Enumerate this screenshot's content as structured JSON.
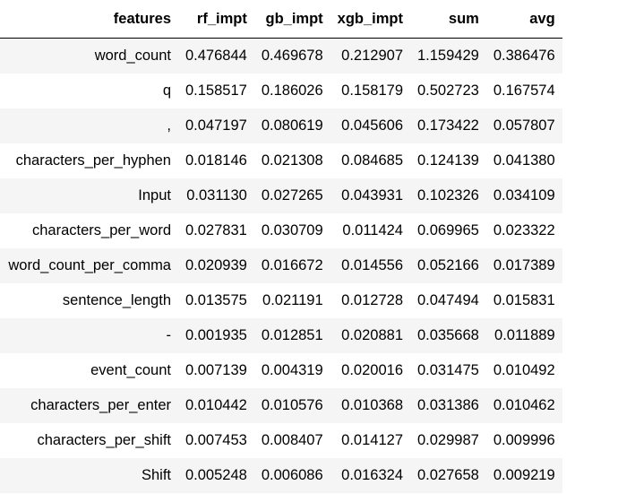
{
  "table": {
    "columns": [
      "features",
      "rf_impt",
      "gb_impt",
      "xgb_impt",
      "sum",
      "avg"
    ],
    "rows": [
      [
        "word_count",
        "0.476844",
        "0.469678",
        "0.212907",
        "1.159429",
        "0.386476"
      ],
      [
        "q",
        "0.158517",
        "0.186026",
        "0.158179",
        "0.502723",
        "0.167574"
      ],
      [
        ",",
        "0.047197",
        "0.080619",
        "0.045606",
        "0.173422",
        "0.057807"
      ],
      [
        "characters_per_hyphen",
        "0.018146",
        "0.021308",
        "0.084685",
        "0.124139",
        "0.041380"
      ],
      [
        "Input",
        "0.031130",
        "0.027265",
        "0.043931",
        "0.102326",
        "0.034109"
      ],
      [
        "characters_per_word",
        "0.027831",
        "0.030709",
        "0.011424",
        "0.069965",
        "0.023322"
      ],
      [
        "word_count_per_comma",
        "0.020939",
        "0.016672",
        "0.014556",
        "0.052166",
        "0.017389"
      ],
      [
        "sentence_length",
        "0.013575",
        "0.021191",
        "0.012728",
        "0.047494",
        "0.015831"
      ],
      [
        "-",
        "0.001935",
        "0.012851",
        "0.020881",
        "0.035668",
        "0.011889"
      ],
      [
        "event_count",
        "0.007139",
        "0.004319",
        "0.020016",
        "0.031475",
        "0.010492"
      ],
      [
        "characters_per_enter",
        "0.010442",
        "0.010576",
        "0.010368",
        "0.031386",
        "0.010462"
      ],
      [
        "characters_per_shift",
        "0.007453",
        "0.008407",
        "0.014127",
        "0.029987",
        "0.009996"
      ],
      [
        "Shift",
        "0.005248",
        "0.006086",
        "0.016324",
        "0.027658",
        "0.009219"
      ]
    ]
  }
}
